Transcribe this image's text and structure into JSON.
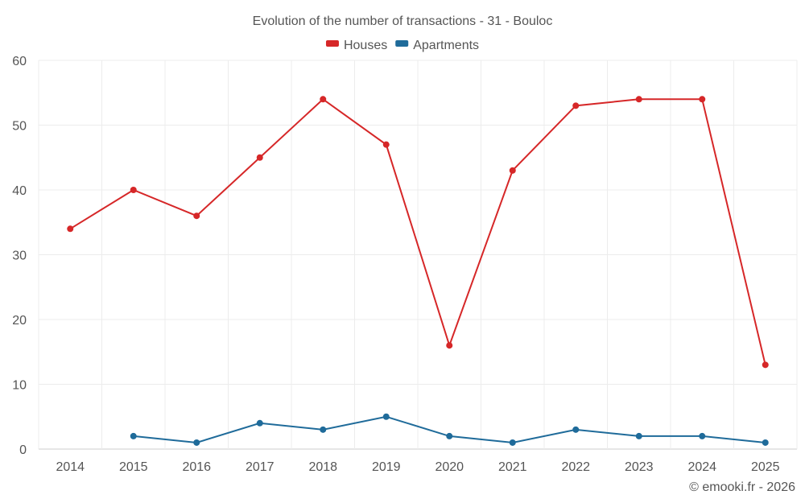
{
  "chart_data": {
    "type": "line",
    "title": "Evolution of the number of transactions - 31 - Bouloc",
    "categories": [
      "2014",
      "2015",
      "2016",
      "2017",
      "2018",
      "2019",
      "2020",
      "2021",
      "2022",
      "2023",
      "2024",
      "2025"
    ],
    "ylim": [
      0,
      60
    ],
    "yticks": [
      0,
      10,
      20,
      30,
      40,
      50,
      60
    ],
    "grid": true,
    "legend_position": "top-center",
    "series": [
      {
        "name": "Houses",
        "color": "#d62728",
        "values": [
          34,
          40,
          36,
          45,
          54,
          47,
          16,
          43,
          53,
          54,
          54,
          13
        ]
      },
      {
        "name": "Apartments",
        "color": "#1f6b9a",
        "values": [
          null,
          2,
          1,
          4,
          3,
          5,
          2,
          1,
          3,
          2,
          2,
          1
        ]
      }
    ]
  },
  "credit": "© emooki.fr - 2026"
}
